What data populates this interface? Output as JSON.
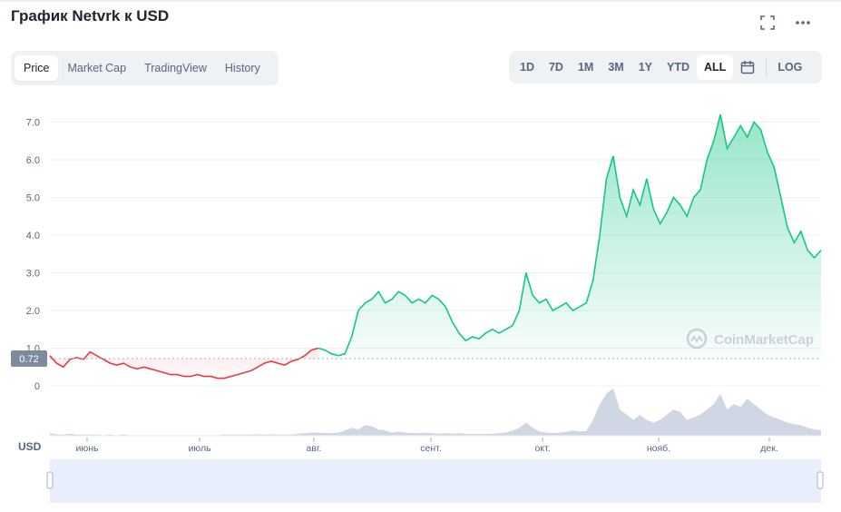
{
  "header": {
    "title": "График Netvrk к USD",
    "expand_icon": "expand-icon",
    "more_icon": "more-dots-icon"
  },
  "tabs": [
    {
      "label": "Price",
      "active": true
    },
    {
      "label": "Market Cap",
      "active": false
    },
    {
      "label": "TradingView",
      "active": false
    },
    {
      "label": "History",
      "active": false
    }
  ],
  "ranges": [
    {
      "label": "1D",
      "active": false
    },
    {
      "label": "7D",
      "active": false
    },
    {
      "label": "1M",
      "active": false
    },
    {
      "label": "3M",
      "active": false
    },
    {
      "label": "1Y",
      "active": false
    },
    {
      "label": "YTD",
      "active": false
    },
    {
      "label": "ALL",
      "active": true
    }
  ],
  "calendar_icon": "calendar-icon",
  "log_label": "LOG",
  "watermark": "CoinMarketCap",
  "colors": {
    "up": "#16c784",
    "down": "#ea3943",
    "volume": "#cfd6e4",
    "navigator": "#6f8ac7",
    "grid": "#eff2f5"
  },
  "chart_data": {
    "type": "line",
    "ylabel": "USD",
    "ylim": [
      0,
      7.5
    ],
    "yticks": [
      0,
      1.0,
      2.0,
      3.0,
      4.0,
      5.0,
      6.0,
      7.0
    ],
    "ytick_labels": [
      "0",
      "1.0",
      "2.0",
      "3.0",
      "4.0",
      "5.0",
      "6.0",
      "7.0"
    ],
    "baseline": 0.72,
    "baseline_label": "0.72",
    "x_labels": [
      "июнь",
      "июль",
      "авг.",
      "сент.",
      "окт.",
      "нояб.",
      "дек."
    ],
    "series": [
      {
        "values": [
          0.8,
          0.6,
          0.5,
          0.7,
          0.75,
          0.7,
          0.9,
          0.8,
          0.7,
          0.6,
          0.55,
          0.6,
          0.5,
          0.45,
          0.5,
          0.45,
          0.4,
          0.35,
          0.3,
          0.3,
          0.25,
          0.25,
          0.3,
          0.25,
          0.25,
          0.2,
          0.2,
          0.25,
          0.3,
          0.35,
          0.4,
          0.5,
          0.6,
          0.65,
          0.6,
          0.55,
          0.65,
          0.7,
          0.8,
          0.95,
          1.0,
          0.95,
          0.85,
          0.8,
          0.85,
          1.3,
          2.0,
          2.2,
          2.3,
          2.5,
          2.2,
          2.3,
          2.5,
          2.4,
          2.2,
          2.3,
          2.2,
          2.4,
          2.3,
          2.1,
          1.7,
          1.4,
          1.2,
          1.3,
          1.25,
          1.4,
          1.5,
          1.4,
          1.5,
          1.6,
          2.0,
          3.0,
          2.4,
          2.2,
          2.3,
          2.0,
          2.1,
          2.2,
          2.0,
          2.1,
          2.2,
          2.8,
          4.0,
          5.5,
          6.1,
          5.0,
          4.5,
          5.2,
          4.8,
          5.5,
          4.7,
          4.3,
          4.6,
          5.0,
          4.8,
          4.5,
          5.0,
          5.2,
          6.0,
          6.5,
          7.2,
          6.3,
          6.6,
          6.9,
          6.6,
          7.0,
          6.8,
          6.2,
          5.8,
          5.0,
          4.2,
          3.8,
          4.1,
          3.6,
          3.4,
          3.6
        ]
      }
    ],
    "volume": [
      0.05,
      0.03,
      0.02,
      0.04,
      0.02,
      0.02,
      0.02,
      0.02,
      0.01,
      0.02,
      0.01,
      0.02,
      0.01,
      0.01,
      0.01,
      0.01,
      0.01,
      0.01,
      0.01,
      0.01,
      0.01,
      0.01,
      0.01,
      0.01,
      0.01,
      0.01,
      0.02,
      0.02,
      0.02,
      0.02,
      0.02,
      0.03,
      0.02,
      0.03,
      0.02,
      0.02,
      0.02,
      0.04,
      0.05,
      0.06,
      0.06,
      0.05,
      0.05,
      0.06,
      0.1,
      0.15,
      0.12,
      0.2,
      0.18,
      0.12,
      0.1,
      0.06,
      0.08,
      0.06,
      0.05,
      0.05,
      0.06,
      0.05,
      0.04,
      0.05,
      0.04,
      0.05,
      0.04,
      0.03,
      0.04,
      0.03,
      0.04,
      0.05,
      0.06,
      0.1,
      0.15,
      0.25,
      0.15,
      0.08,
      0.06,
      0.05,
      0.06,
      0.07,
      0.1,
      0.08,
      0.09,
      0.3,
      0.6,
      0.8,
      0.9,
      0.5,
      0.4,
      0.3,
      0.4,
      0.3,
      0.25,
      0.3,
      0.4,
      0.5,
      0.45,
      0.3,
      0.35,
      0.4,
      0.5,
      0.6,
      0.8,
      0.5,
      0.6,
      0.55,
      0.7,
      0.6,
      0.5,
      0.4,
      0.35,
      0.3,
      0.25,
      0.22,
      0.2,
      0.15,
      0.12,
      0.1
    ]
  }
}
